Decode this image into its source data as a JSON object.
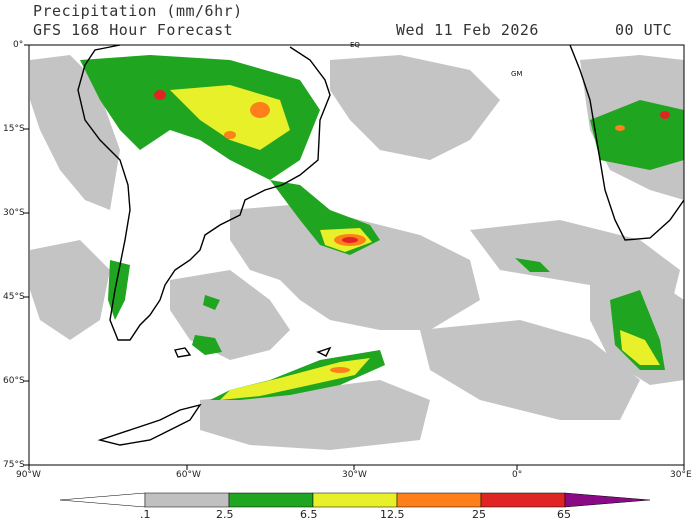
{
  "header": {
    "title": "Precipitation (mm/6hr)",
    "model": "GFS 168 Hour Forecast",
    "date": "Wed 11 Feb 2026",
    "time": "00 UTC"
  },
  "map": {
    "lat_labels": [
      "0°",
      "15°S",
      "30°S",
      "45°S",
      "60°S",
      "75°S"
    ],
    "lon_labels": [
      "90°W",
      "60°W",
      "30°W",
      "0°",
      "30°E"
    ],
    "markers": [
      "EQ",
      "GM"
    ]
  },
  "legend": {
    "ticks": [
      ".1",
      "2.5",
      "6.5",
      "12.5",
      "25",
      "65"
    ],
    "colors": [
      "#ffffff",
      "#c0c0c0",
      "#1fa51f",
      "#e8f02a",
      "#ff7f1a",
      "#e02424",
      "#8b0a86"
    ]
  }
}
